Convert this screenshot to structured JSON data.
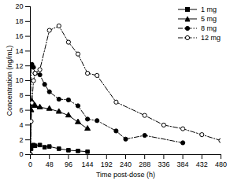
{
  "chart_data": {
    "type": "line",
    "x_label": "Time post-dose (h)",
    "y_label": "Concentration (ng/mL)",
    "xlim": [
      0,
      480
    ],
    "xticks": [
      0,
      48,
      96,
      144,
      192,
      240,
      288,
      336,
      384,
      432,
      480
    ],
    "ylim": [
      0,
      20
    ],
    "yticks": [
      0,
      2,
      4,
      6,
      8,
      10,
      12,
      14,
      16,
      18,
      20
    ],
    "legend": "top-right",
    "series": [
      {
        "name": "1 mg",
        "color": "#000000",
        "marker": "square",
        "line_style": "solid",
        "x": [
          0,
          2,
          4,
          8,
          12,
          24,
          36,
          48,
          72,
          96,
          120,
          144
        ],
        "values": [
          0,
          0.8,
          1.2,
          1.3,
          1.2,
          1.3,
          1.0,
          1.1,
          0.8,
          0.6,
          0.5,
          0.4
        ]
      },
      {
        "name": "5 mg",
        "color": "#000000",
        "marker": "triangle",
        "line_style": "solid",
        "x": [
          0,
          2,
          4,
          8,
          12,
          24,
          48,
          72,
          96,
          120,
          144
        ],
        "values": [
          0,
          6.0,
          7.2,
          6.8,
          6.6,
          6.4,
          6.2,
          5.8,
          5.3,
          4.4,
          3.5
        ]
      },
      {
        "name": "8 mg",
        "color": "#000000",
        "marker": "circle",
        "line_style": "dashdot",
        "x": [
          0,
          2,
          4,
          8,
          12,
          24,
          36,
          48,
          72,
          96,
          120,
          144,
          168,
          216,
          240,
          288,
          384
        ],
        "values": [
          0,
          12.0,
          12.2,
          11.8,
          11.0,
          10.8,
          9.5,
          8.5,
          7.5,
          7.4,
          6.6,
          4.8,
          4.6,
          3.2,
          2.1,
          2.6,
          1.6
        ]
      },
      {
        "name": "12 mg",
        "color": "#000000",
        "marker": "open_circle",
        "line_style": "dashdot",
        "x": [
          0,
          2,
          4,
          8,
          12,
          24,
          48,
          72,
          96,
          120,
          144,
          168,
          216,
          288,
          336,
          384,
          432,
          480
        ],
        "values": [
          0,
          4.5,
          7.0,
          10.0,
          11.0,
          11.5,
          16.8,
          17.4,
          15.2,
          13.6,
          11.0,
          10.7,
          7.1,
          5.3,
          4.0,
          3.5,
          2.7,
          1.9
        ]
      }
    ]
  }
}
